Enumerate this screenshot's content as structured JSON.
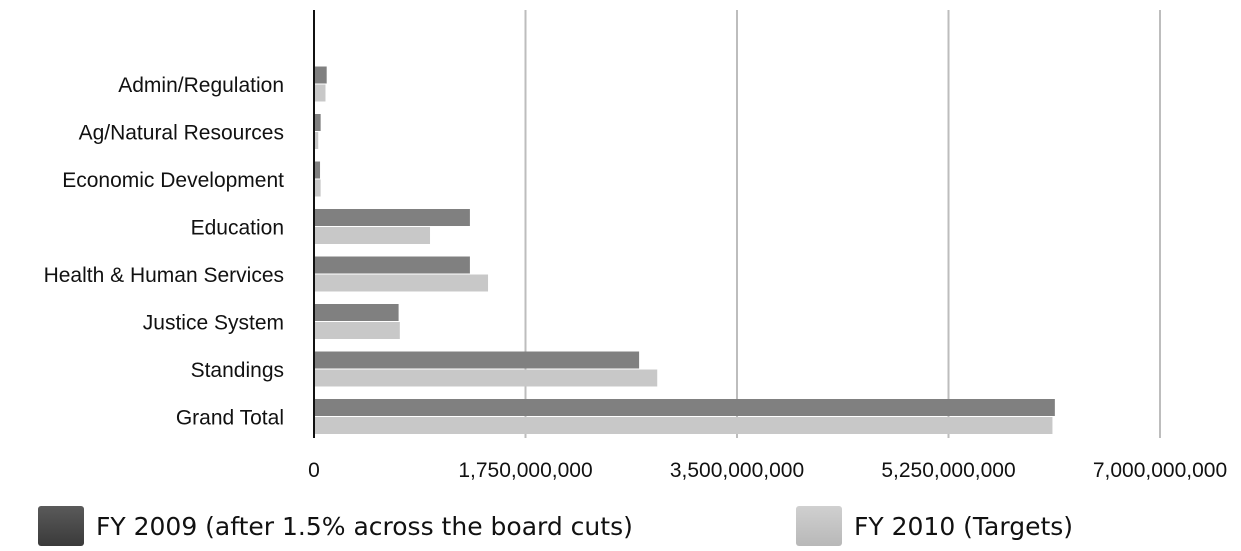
{
  "chart_data": {
    "type": "bar",
    "orientation": "horizontal",
    "title": "",
    "xlabel": "",
    "ylabel": "",
    "categories": [
      "Admin/Regulation",
      "Ag/Natural Resources",
      "Economic Development",
      "Education",
      "Health & Human Services",
      "Justice System",
      "Standings",
      "Grand Total"
    ],
    "series": [
      {
        "name": "FY 2009 (after 1.5% across the board cuts)",
        "color": "#808080",
        "values": [
          105000000,
          55000000,
          50000000,
          1290000000,
          1290000000,
          700000000,
          2690000000,
          6130000000
        ]
      },
      {
        "name": "FY 2010 (Targets)",
        "color": "#c8c8c8",
        "values": [
          95000000,
          35000000,
          55000000,
          960000000,
          1440000000,
          710000000,
          2840000000,
          6110000000
        ]
      }
    ],
    "xlim": [
      0,
      7000000000
    ],
    "xticks": [
      0,
      1750000000,
      3500000000,
      5250000000,
      7000000000
    ],
    "xtick_labels": [
      "0",
      "1,750,000,000",
      "3,500,000,000",
      "5,250,000,000",
      "7,000,000,000"
    ],
    "grid": "vertical",
    "legend_position": "bottom"
  }
}
